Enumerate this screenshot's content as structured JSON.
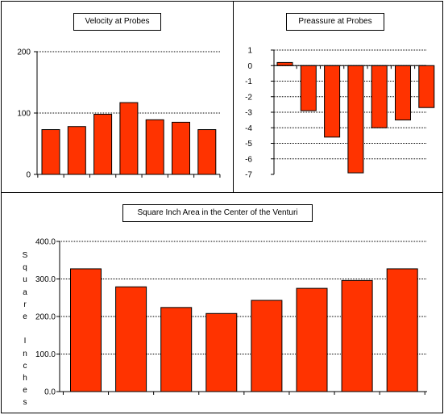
{
  "colors": {
    "bar_fill": "#ff3300",
    "bar_stroke": "#000000",
    "grid": "#000000",
    "background": "#ffffff"
  },
  "chart_data": [
    {
      "type": "bar",
      "title": "Velocity at Probes",
      "categories": [
        "",
        "",
        "",
        "",
        "",
        "",
        ""
      ],
      "values": [
        73,
        78,
        98,
        117,
        89,
        85,
        73
      ],
      "ylim": [
        0,
        200
      ],
      "yticks": [
        0,
        100,
        200
      ],
      "ytick_labels": [
        "0",
        "100",
        "200"
      ],
      "grid": true,
      "ylabel": "",
      "xlabel": ""
    },
    {
      "type": "bar",
      "title": "Preassure at Probes",
      "categories": [
        "",
        "",
        "",
        "",
        "",
        "",
        ""
      ],
      "values": [
        0.2,
        -2.9,
        -4.6,
        -6.9,
        -4.0,
        -3.5,
        -2.7
      ],
      "ylim": [
        -7,
        1
      ],
      "yticks": [
        1,
        0,
        -1,
        -2,
        -3,
        -4,
        -5,
        -6,
        -7
      ],
      "ytick_labels": [
        "1",
        "0",
        "-1",
        "-2",
        "-3",
        "-4",
        "-5",
        "-6",
        "-7"
      ],
      "grid": true,
      "ylabel": "",
      "xlabel": ""
    },
    {
      "type": "bar",
      "title": "Square Inch Area in the Center of the Venturi",
      "categories": [
        "",
        "",
        "",
        "",
        "",
        "",
        "",
        ""
      ],
      "values": [
        327,
        279,
        224,
        208,
        243,
        275,
        296,
        327
      ],
      "ylim": [
        0,
        400
      ],
      "yticks": [
        0,
        100,
        200,
        300,
        400
      ],
      "ytick_labels": [
        "0.0",
        "100.0",
        "200.0",
        "300.0",
        "400.0"
      ],
      "grid": true,
      "ylabel": "Square Inches",
      "xlabel": ""
    }
  ]
}
